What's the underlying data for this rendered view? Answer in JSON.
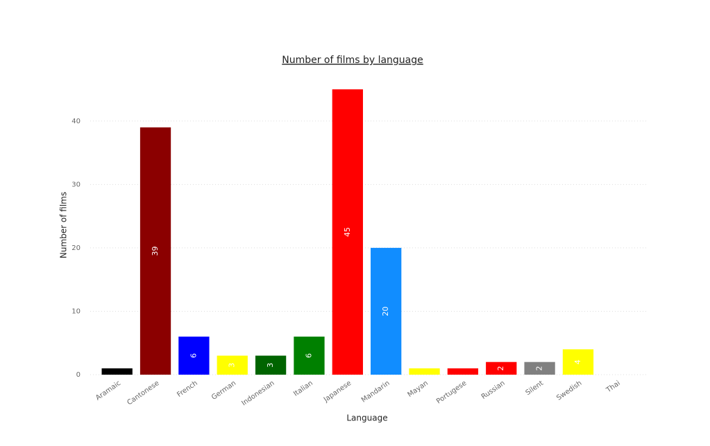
{
  "chart_data": {
    "type": "bar",
    "title": "Number of films by language",
    "x_label": "Language",
    "y_label": "Number of films",
    "categories": [
      "Aramaic",
      "Cantonese",
      "French",
      "German",
      "Indonesian",
      "Italian",
      "Japanese",
      "Mandarin",
      "Mayan",
      "Portugese",
      "Russian",
      "Silent",
      "Swedish",
      "Thai"
    ],
    "values": [
      1,
      39,
      6,
      3,
      3,
      6,
      45,
      20,
      1,
      1,
      2,
      2,
      4,
      0
    ],
    "colors": [
      "#000000",
      "#8b0000",
      "#0000ff",
      "#ffff00",
      "#006400",
      "#008000",
      "#ff0000",
      "#118dff",
      "#ffff00",
      "#ff0000",
      "#ff0000",
      "#808080",
      "#ffff00",
      "#ffff00"
    ],
    "ylim": [
      0,
      45
    ],
    "yticks": [
      0,
      10,
      20,
      30,
      40
    ],
    "grid": true
  }
}
